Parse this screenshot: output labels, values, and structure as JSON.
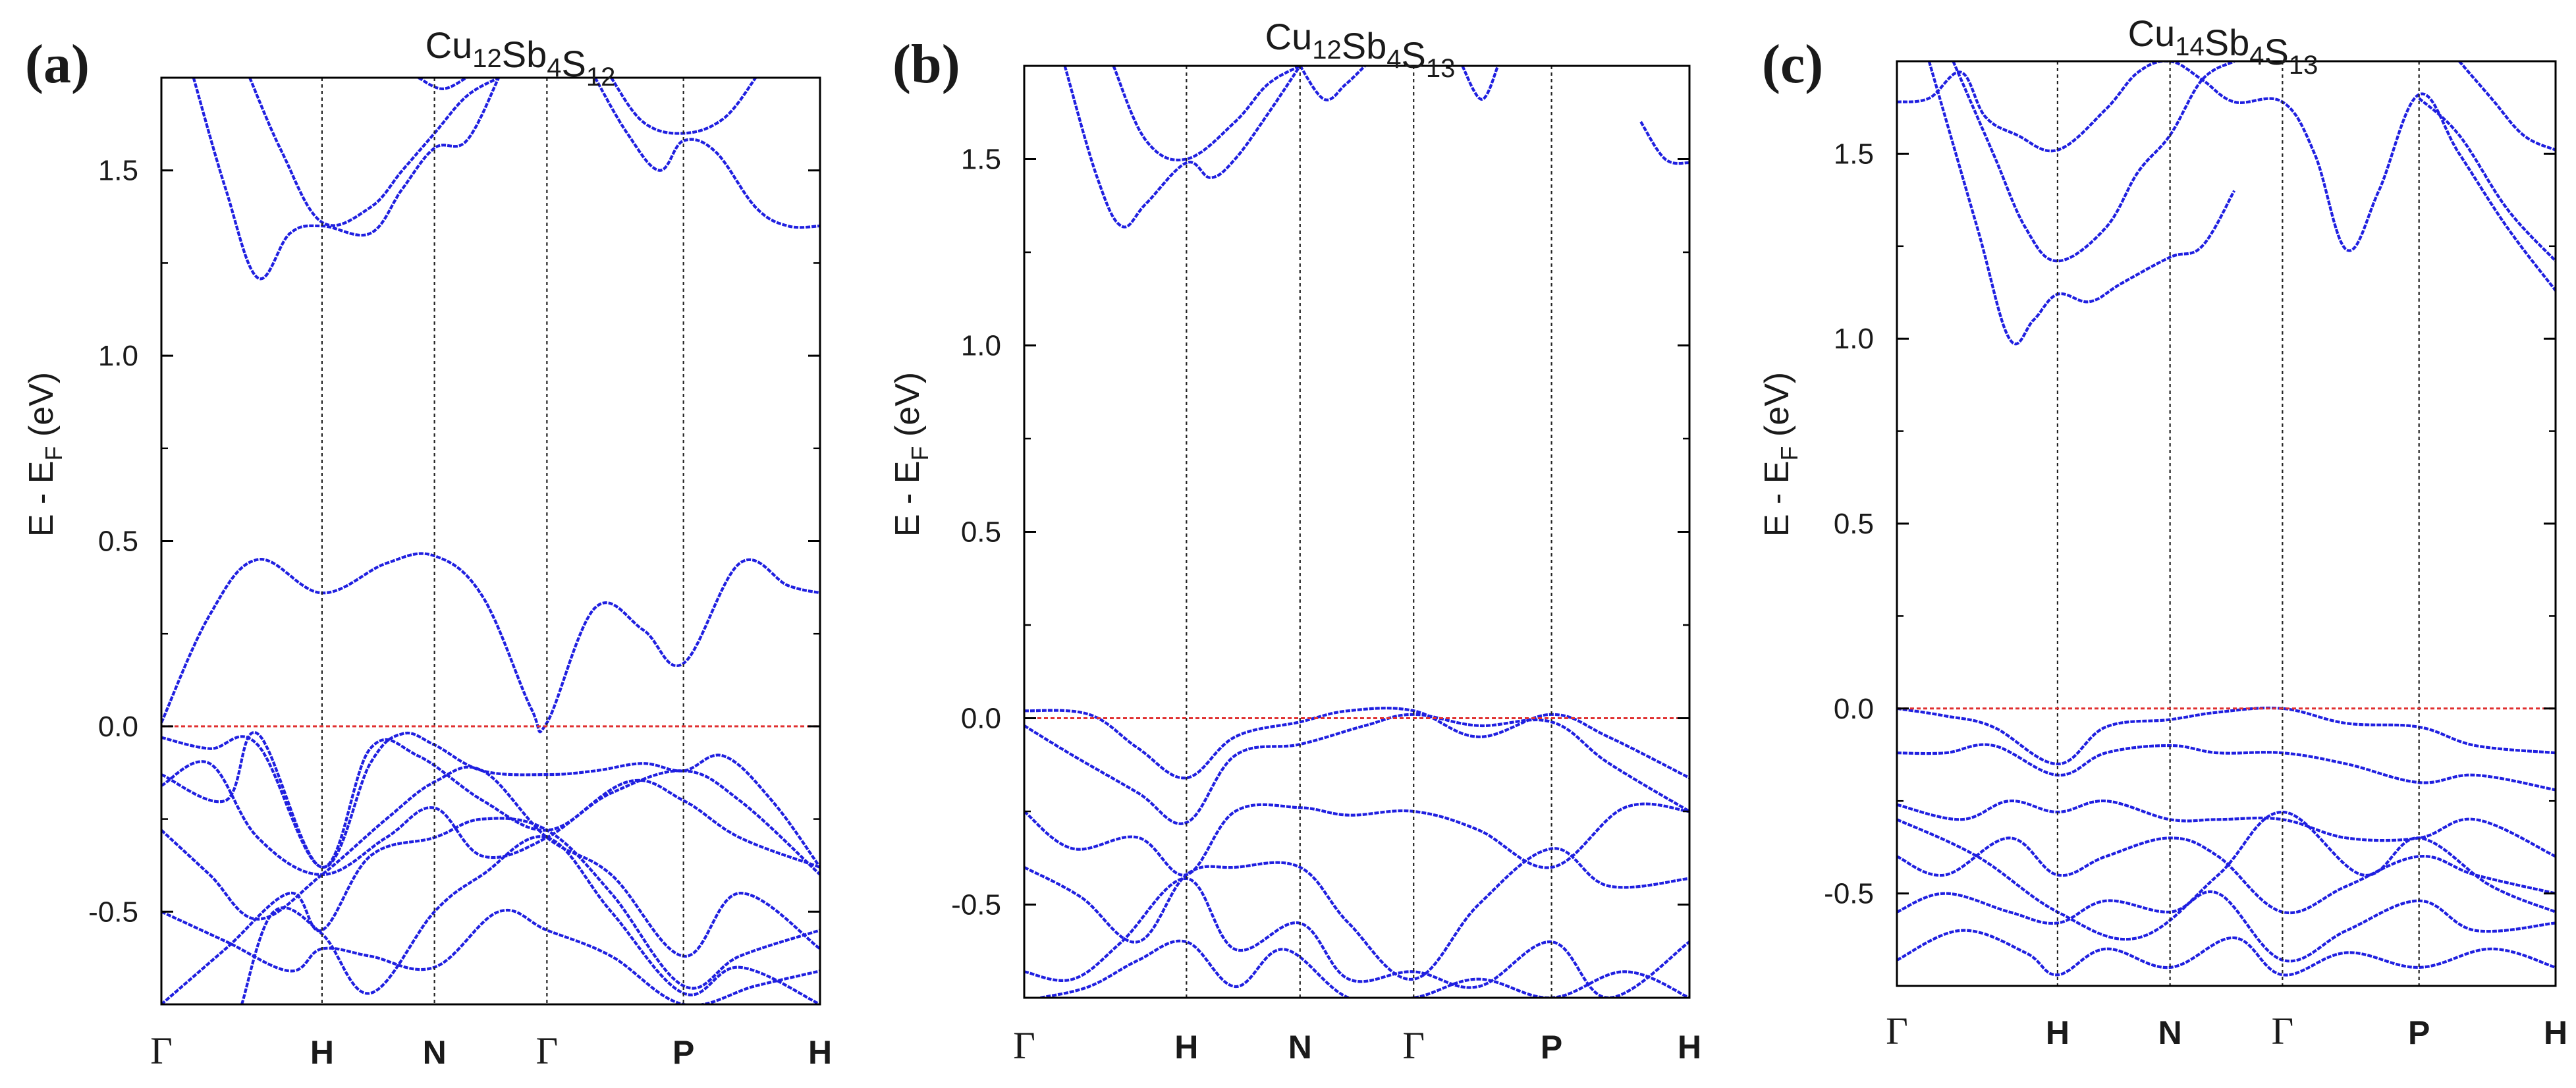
{
  "figure": {
    "colors": {
      "band": "#1f1fe0",
      "fermi": "#e03030",
      "axis": "#000000",
      "kline": "#222222"
    }
  },
  "chart_data": [
    {
      "type": "line",
      "panel_label": "(a)",
      "title": {
        "base": "Cu",
        "parts": [
          [
            "Cu",
            "12"
          ],
          [
            "Sb",
            "4"
          ],
          [
            "S",
            "12"
          ]
        ]
      },
      "ylabel": {
        "main": "E - E",
        "sub": "F",
        "unit": " (eV)"
      },
      "ylim": [
        -0.75,
        1.75
      ],
      "yticks": [
        -0.5,
        0.0,
        0.5,
        1.0,
        1.5
      ],
      "ytick_labels": [
        "-0.5",
        "0.0",
        "0.5",
        "1.0",
        "1.5"
      ],
      "kpoints": [
        "Γ",
        "H",
        "N",
        "Γ",
        "P",
        "H"
      ],
      "kpositions": [
        0,
        1,
        1.7,
        2.4,
        3.25,
        4.1
      ],
      "fermi_level": 0.0,
      "series": [
        {
          "name": "cb1",
          "x": [
            0,
            0.3,
            0.6,
            1.0,
            1.4,
            1.7,
            2.0,
            2.3,
            2.4,
            2.7,
            3.0,
            3.25,
            3.6,
            3.9,
            4.1
          ],
          "y": [
            0.01,
            0.3,
            0.45,
            0.36,
            0.44,
            0.46,
            0.35,
            0.05,
            0.01,
            0.32,
            0.26,
            0.17,
            0.44,
            0.38,
            0.36
          ]
        },
        {
          "name": "cb2",
          "x": [
            0.2,
            0.4,
            0.6,
            0.8,
            1.0,
            1.3,
            1.5,
            1.7,
            1.9,
            2.1
          ],
          "y": [
            1.75,
            1.45,
            1.21,
            1.33,
            1.35,
            1.33,
            1.45,
            1.56,
            1.58,
            1.75
          ]
        },
        {
          "name": "cb3",
          "x": [
            0.55,
            0.75,
            1.0,
            1.3,
            1.5,
            1.7,
            1.9,
            2.1
          ],
          "y": [
            1.75,
            1.55,
            1.36,
            1.4,
            1.5,
            1.6,
            1.7,
            1.75
          ]
        },
        {
          "name": "cb4",
          "x": [
            1.6,
            1.75,
            1.9
          ],
          "y": [
            1.75,
            1.72,
            1.75
          ]
        },
        {
          "name": "cb5",
          "x": [
            2.7,
            2.9,
            3.1,
            3.25,
            3.45,
            3.7,
            3.9,
            4.1
          ],
          "y": [
            1.75,
            1.6,
            1.5,
            1.58,
            1.55,
            1.4,
            1.35,
            1.35
          ]
        },
        {
          "name": "cb6",
          "x": [
            2.8,
            3.0,
            3.25,
            3.5,
            3.7
          ],
          "y": [
            1.75,
            1.63,
            1.6,
            1.64,
            1.75
          ]
        },
        {
          "name": "vb1",
          "x": [
            0,
            0.3,
            0.6,
            1.0,
            1.3,
            1.5,
            1.7,
            2.0,
            2.4,
            2.7,
            3.0,
            3.25,
            3.5,
            3.8,
            4.1
          ],
          "y": [
            -0.03,
            -0.06,
            -0.05,
            -0.38,
            -0.1,
            -0.02,
            -0.05,
            -0.12,
            -0.13,
            -0.12,
            -0.1,
            -0.12,
            -0.08,
            -0.2,
            -0.38
          ]
        },
        {
          "name": "vb2",
          "x": [
            0,
            0.4,
            0.6,
            1.0,
            1.3,
            1.6,
            2.0,
            2.4,
            2.8,
            3.25,
            3.6,
            4.1
          ],
          "y": [
            -0.13,
            -0.2,
            -0.02,
            -0.38,
            -0.06,
            -0.08,
            -0.2,
            -0.28,
            -0.18,
            -0.12,
            -0.2,
            -0.4
          ]
        },
        {
          "name": "vb3",
          "x": [
            0,
            0.3,
            0.6,
            1.0,
            1.4,
            1.7,
            2.0,
            2.4,
            2.8,
            3.25,
            3.6,
            4.1
          ],
          "y": [
            -0.28,
            -0.4,
            -0.52,
            -0.4,
            -0.25,
            -0.15,
            -0.12,
            -0.3,
            -0.4,
            -0.62,
            -0.45,
            -0.6
          ]
        },
        {
          "name": "vb4",
          "x": [
            0,
            0.4,
            0.8,
            1.0,
            1.3,
            1.7,
            2.0,
            2.4,
            2.8,
            3.25,
            3.6,
            4.1
          ],
          "y": [
            -0.75,
            -0.6,
            -0.45,
            -0.55,
            -0.35,
            -0.3,
            -0.25,
            -0.28,
            -0.45,
            -0.7,
            -0.62,
            -0.55
          ]
        },
        {
          "name": "vb5",
          "x": [
            0.5,
            0.7,
            1.0,
            1.3,
            1.7,
            2.0,
            2.4,
            2.8,
            3.25,
            3.6,
            4.1
          ],
          "y": [
            -0.75,
            -0.5,
            -0.56,
            -0.72,
            -0.5,
            -0.4,
            -0.3,
            -0.5,
            -0.72,
            -0.65,
            -0.75
          ]
        },
        {
          "name": "vb6",
          "x": [
            0,
            0.3,
            0.6,
            1.0,
            1.4,
            1.7,
            2.0,
            2.4,
            2.9,
            3.25,
            3.6,
            4.1
          ],
          "y": [
            -0.16,
            -0.1,
            -0.3,
            -0.4,
            -0.3,
            -0.22,
            -0.35,
            -0.3,
            -0.15,
            -0.2,
            -0.3,
            -0.38
          ]
        },
        {
          "name": "vb7",
          "x": [
            0,
            0.4,
            0.8,
            1.0,
            1.3,
            1.7,
            2.1,
            2.4,
            2.8,
            3.25,
            3.7,
            4.1
          ],
          "y": [
            -0.5,
            -0.58,
            -0.66,
            -0.6,
            -0.62,
            -0.65,
            -0.5,
            -0.55,
            -0.62,
            -0.75,
            -0.7,
            -0.66
          ]
        }
      ]
    },
    {
      "type": "line",
      "panel_label": "(b)",
      "title": {
        "base": "Cu",
        "parts": [
          [
            "Cu",
            "12"
          ],
          [
            "Sb",
            "4"
          ],
          [
            "S",
            "13"
          ]
        ]
      },
      "ylabel": {
        "main": "E - E",
        "sub": "F",
        "unit": " (eV)"
      },
      "ylim": [
        -0.75,
        1.75
      ],
      "yticks": [
        -0.5,
        0.0,
        0.5,
        1.0,
        1.5
      ],
      "ytick_labels": [
        "-0.5",
        "0.0",
        "0.5",
        "1.0",
        "1.5"
      ],
      "kpoints": [
        "Γ",
        "H",
        "N",
        "Γ",
        "P",
        "H"
      ],
      "kpositions": [
        0,
        1,
        1.7,
        2.4,
        3.25,
        4.1
      ],
      "fermi_level": 0.0,
      "series": [
        {
          "name": "cb1",
          "x": [
            0.25,
            0.45,
            0.6,
            0.75,
            1.0,
            1.15,
            1.3,
            1.5,
            1.7
          ],
          "y": [
            1.75,
            1.45,
            1.32,
            1.38,
            1.49,
            1.45,
            1.5,
            1.62,
            1.75
          ]
        },
        {
          "name": "cb2",
          "x": [
            0.55,
            0.75,
            1.0,
            1.3,
            1.5,
            1.7
          ],
          "y": [
            1.75,
            1.55,
            1.5,
            1.6,
            1.7,
            1.75
          ]
        },
        {
          "name": "cb3",
          "x": [
            1.7,
            1.85,
            1.98,
            2.1
          ],
          "y": [
            1.75,
            1.66,
            1.7,
            1.75
          ]
        },
        {
          "name": "cb4",
          "x": [
            2.7,
            2.82,
            2.92
          ],
          "y": [
            1.75,
            1.66,
            1.75
          ]
        },
        {
          "name": "cb5",
          "x": [
            3.8,
            3.95,
            4.1
          ],
          "y": [
            1.6,
            1.5,
            1.49
          ]
        },
        {
          "name": "vb1",
          "x": [
            0,
            0.4,
            0.7,
            1.0,
            1.3,
            1.7,
            2.0,
            2.4,
            2.8,
            3.25,
            3.6,
            4.1
          ],
          "y": [
            0.02,
            0.01,
            -0.08,
            -0.16,
            -0.05,
            -0.01,
            0.02,
            0.02,
            -0.05,
            0.01,
            -0.05,
            -0.16
          ]
        },
        {
          "name": "vb2",
          "x": [
            0,
            0.3,
            0.7,
            1.0,
            1.3,
            1.7,
            2.1,
            2.4,
            2.8,
            3.25,
            3.6,
            4.1
          ],
          "y": [
            -0.02,
            -0.1,
            -0.2,
            -0.28,
            -0.1,
            -0.07,
            -0.02,
            0.01,
            -0.02,
            -0.01,
            -0.12,
            -0.25
          ]
        },
        {
          "name": "vb3",
          "x": [
            0,
            0.3,
            0.7,
            1.0,
            1.3,
            1.7,
            2.0,
            2.4,
            2.8,
            3.25,
            3.7,
            4.1
          ],
          "y": [
            -0.25,
            -0.35,
            -0.32,
            -0.42,
            -0.25,
            -0.24,
            -0.26,
            -0.25,
            -0.3,
            -0.4,
            -0.24,
            -0.25
          ]
        },
        {
          "name": "vb4",
          "x": [
            0,
            0.35,
            0.7,
            1.0,
            1.3,
            1.7,
            2.0,
            2.4,
            2.8,
            3.25,
            3.6,
            4.1
          ],
          "y": [
            -0.4,
            -0.48,
            -0.6,
            -0.42,
            -0.4,
            -0.4,
            -0.55,
            -0.7,
            -0.5,
            -0.35,
            -0.45,
            -0.43
          ]
        },
        {
          "name": "vb5",
          "x": [
            0,
            0.3,
            0.6,
            1.0,
            1.3,
            1.7,
            2.0,
            2.4,
            2.8,
            3.25,
            3.6,
            4.1
          ],
          "y": [
            -0.68,
            -0.7,
            -0.6,
            -0.43,
            -0.62,
            -0.55,
            -0.7,
            -0.68,
            -0.72,
            -0.6,
            -0.75,
            -0.6
          ]
        },
        {
          "name": "vb6",
          "x": [
            0.1,
            0.4,
            0.7,
            1.0,
            1.3,
            1.6,
            2.0,
            2.4,
            2.8,
            3.25,
            3.7,
            4.1
          ],
          "y": [
            -0.75,
            -0.72,
            -0.65,
            -0.6,
            -0.72,
            -0.62,
            -0.75,
            -0.75,
            -0.7,
            -0.75,
            -0.68,
            -0.75
          ]
        }
      ]
    },
    {
      "type": "line",
      "panel_label": "(c)",
      "title": {
        "base": "Cu",
        "parts": [
          [
            "Cu",
            "14"
          ],
          [
            "Sb",
            "4"
          ],
          [
            "S",
            "13"
          ]
        ]
      },
      "ylabel": {
        "main": "E - E",
        "sub": "F",
        "unit": " (eV)"
      },
      "ylim": [
        -0.75,
        1.75
      ],
      "yticks": [
        -0.5,
        0.0,
        0.5,
        1.0,
        1.5
      ],
      "ytick_labels": [
        "-0.5",
        "0.0",
        "0.5",
        "1.0",
        "1.5"
      ],
      "kpoints": [
        "Γ",
        "H",
        "N",
        "Γ",
        "P",
        "H"
      ],
      "kpositions": [
        0,
        1,
        1.7,
        2.4,
        3.25,
        4.1
      ],
      "fermi_level": 0.0,
      "series": [
        {
          "name": "cb1",
          "x": [
            0.2,
            0.5,
            0.7,
            0.85,
            1.0,
            1.2,
            1.4,
            1.7,
            1.9,
            2.1
          ],
          "y": [
            1.75,
            1.3,
            1.0,
            1.05,
            1.12,
            1.1,
            1.15,
            1.22,
            1.25,
            1.4
          ]
        },
        {
          "name": "cb2",
          "x": [
            0.35,
            0.6,
            0.8,
            1.0,
            1.3,
            1.5,
            1.7,
            1.9,
            2.1
          ],
          "y": [
            1.75,
            1.5,
            1.3,
            1.21,
            1.3,
            1.45,
            1.55,
            1.7,
            1.75
          ]
        },
        {
          "name": "cb3",
          "x": [
            0,
            0.2,
            0.4,
            0.55,
            0.75,
            1.0,
            1.3,
            1.5,
            1.7,
            1.9,
            2.1,
            2.4,
            2.6,
            2.8,
            3.0,
            3.25,
            3.5,
            3.8,
            4.1
          ],
          "y": [
            1.64,
            1.65,
            1.72,
            1.6,
            1.55,
            1.51,
            1.62,
            1.72,
            1.75,
            1.7,
            1.64,
            1.64,
            1.5,
            1.24,
            1.4,
            1.66,
            1.5,
            1.3,
            1.13
          ]
        },
        {
          "name": "cb4",
          "x": [
            3.25,
            3.5,
            3.8,
            4.1
          ],
          "y": [
            1.65,
            1.55,
            1.35,
            1.21
          ]
        },
        {
          "name": "cb5",
          "x": [
            3.5,
            3.7,
            3.9,
            4.1
          ],
          "y": [
            1.75,
            1.65,
            1.55,
            1.51
          ]
        },
        {
          "name": "vb1",
          "x": [
            0,
            0.3,
            0.6,
            1.0,
            1.3,
            1.7,
            2.0,
            2.4,
            2.8,
            3.25,
            3.6,
            4.1
          ],
          "y": [
            0.0,
            -0.02,
            -0.05,
            -0.15,
            -0.05,
            -0.03,
            -0.01,
            0.0,
            -0.04,
            -0.05,
            -0.1,
            -0.12
          ]
        },
        {
          "name": "vb2",
          "x": [
            0,
            0.3,
            0.6,
            1.0,
            1.3,
            1.7,
            2.0,
            2.4,
            2.8,
            3.25,
            3.6,
            4.1
          ],
          "y": [
            -0.12,
            -0.12,
            -0.1,
            -0.18,
            -0.12,
            -0.1,
            -0.12,
            -0.12,
            -0.15,
            -0.2,
            -0.18,
            -0.22
          ]
        },
        {
          "name": "vb3",
          "x": [
            0,
            0.4,
            0.7,
            1.0,
            1.3,
            1.7,
            2.0,
            2.4,
            2.8,
            3.25,
            3.6,
            4.1
          ],
          "y": [
            -0.26,
            -0.3,
            -0.25,
            -0.28,
            -0.25,
            -0.3,
            -0.3,
            -0.3,
            -0.35,
            -0.35,
            -0.3,
            -0.4
          ]
        },
        {
          "name": "vb4",
          "x": [
            0,
            0.3,
            0.7,
            1.0,
            1.3,
            1.7,
            2.0,
            2.4,
            2.8,
            3.25,
            3.6,
            4.1
          ],
          "y": [
            -0.4,
            -0.45,
            -0.35,
            -0.45,
            -0.4,
            -0.35,
            -0.4,
            -0.55,
            -0.48,
            -0.4,
            -0.45,
            -0.5
          ]
        },
        {
          "name": "vb5",
          "x": [
            0,
            0.3,
            0.7,
            1.0,
            1.3,
            1.7,
            2.0,
            2.4,
            2.8,
            3.25,
            3.6,
            4.1
          ],
          "y": [
            -0.55,
            -0.5,
            -0.55,
            -0.58,
            -0.52,
            -0.55,
            -0.5,
            -0.68,
            -0.6,
            -0.52,
            -0.6,
            -0.58
          ]
        },
        {
          "name": "vb6",
          "x": [
            0,
            0.4,
            0.8,
            1.0,
            1.3,
            1.7,
            2.1,
            2.4,
            2.8,
            3.25,
            3.7,
            4.1
          ],
          "y": [
            -0.68,
            -0.6,
            -0.66,
            -0.72,
            -0.65,
            -0.7,
            -0.62,
            -0.72,
            -0.66,
            -0.7,
            -0.65,
            -0.7
          ]
        },
        {
          "name": "vb7",
          "x": [
            0,
            0.5,
            1.0,
            1.5,
            2.0,
            2.4,
            2.9,
            3.25,
            3.7,
            4.1
          ],
          "y": [
            -0.3,
            -0.4,
            -0.55,
            -0.62,
            -0.45,
            -0.28,
            -0.45,
            -0.35,
            -0.48,
            -0.55
          ]
        }
      ]
    }
  ]
}
